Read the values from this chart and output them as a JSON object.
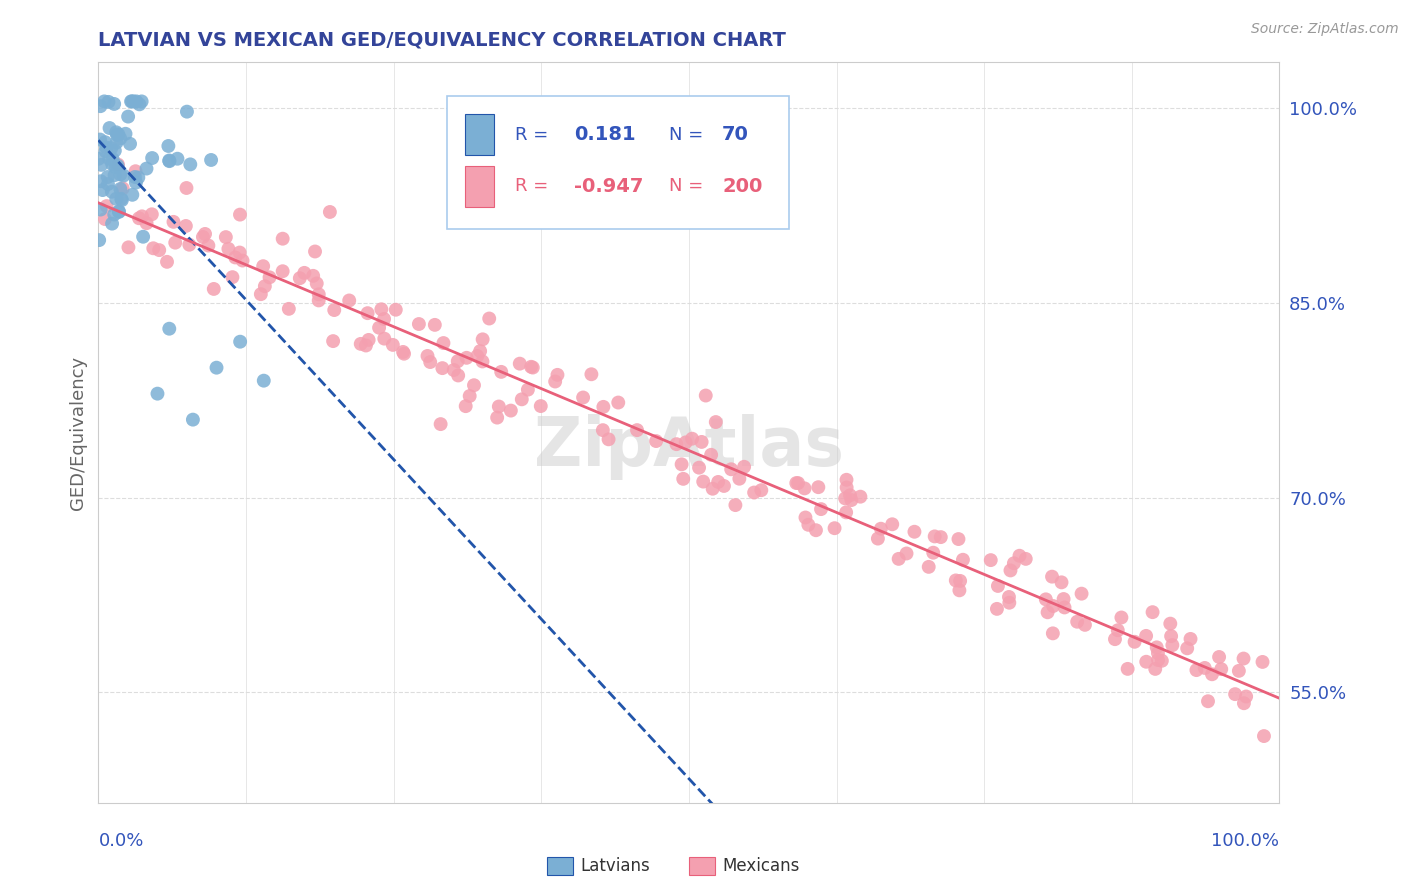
{
  "title": "LATVIAN VS MEXICAN GED/EQUIVALENCY CORRELATION CHART",
  "source": "Source: ZipAtlas.com",
  "ylabel": "GED/Equivalency",
  "ytick_labels": [
    "100.0%",
    "85.0%",
    "70.0%",
    "55.0%"
  ],
  "ytick_values": [
    1.0,
    0.85,
    0.7,
    0.55
  ],
  "xmin": 0.0,
  "xmax": 1.0,
  "ymin": 0.465,
  "ymax": 1.035,
  "legend_R_latvian": "0.181",
  "legend_N_latvian": "70",
  "legend_R_mexican": "-0.947",
  "legend_N_mexican": "200",
  "latvian_color": "#7BAFD4",
  "mexican_color": "#F4A0B0",
  "latvian_line_color": "#2255AA",
  "mexican_line_color": "#E8607A",
  "watermark": "ZipAtlas",
  "title_color": "#334499",
  "axis_label_color": "#3355BB",
  "background_color": "#FFFFFF",
  "grid_color": "#DDDDDD",
  "legend_box_color": "#AACCEE",
  "legend_lat_text_color": "#3355BB",
  "legend_mex_text_color": "#E8607A"
}
